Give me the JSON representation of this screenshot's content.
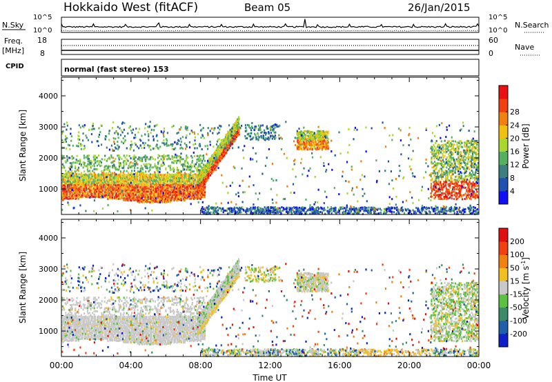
{
  "header": {
    "station": "Hokkaido West (fitACF)",
    "beam": "Beam 05",
    "date": "26/Jan/2015"
  },
  "status_panels": {
    "nsky_label": "N.Sky",
    "nsky_ticks": [
      "10^5",
      "10^0"
    ],
    "nsearch_label": "N.Search",
    "freq_label_top": "Freq.",
    "freq_label_unit": "[MHz]",
    "freq_ticks": [
      "18",
      "8"
    ],
    "nave_label": "Nave",
    "nave_ticks": [
      "60",
      "0"
    ],
    "cpid_label": "CPID",
    "cpid_text": "normal (fast stereo) 153"
  },
  "chart_data": [
    {
      "type": "heatmap",
      "name": "power",
      "xlabel": "",
      "ylabel": "Slant Range [km]",
      "xlim": [
        0,
        24
      ],
      "ylim": [
        180,
        4600
      ],
      "y_ticks": [
        "1000",
        "2000",
        "3000",
        "4000"
      ],
      "colorbar": {
        "label": "Power [dB]",
        "ticks": [
          "4",
          "8",
          "12",
          "16",
          "20",
          "24",
          "28"
        ],
        "colors": [
          "#1010f0",
          "#2050b0",
          "#3d7e7e",
          "#55b060",
          "#a8d830",
          "#f0c010",
          "#f08010",
          "#f04010",
          "#e81010"
        ]
      }
    },
    {
      "type": "heatmap",
      "name": "velocity",
      "xlabel": "Time UT",
      "ylabel": "Slant Range [km]",
      "xlim": [
        0,
        24
      ],
      "ylim": [
        180,
        4600
      ],
      "x_ticks": [
        "00:00",
        "04:00",
        "08:00",
        "12:00",
        "16:00",
        "20:00",
        "00:00"
      ],
      "y_ticks": [
        "1000",
        "2000",
        "3000",
        "4000"
      ],
      "colorbar": {
        "label_main": "Velocity [m s",
        "label_sup": "-1",
        "label_end": "]",
        "ticks": [
          "200",
          "100",
          "50",
          "15",
          "-15",
          "-50",
          "-100",
          "-200"
        ],
        "colors": [
          "#1020c8",
          "#2060a8",
          "#3d8a6a",
          "#5cc040",
          "#c8c8c8",
          "#f0c020",
          "#f08010",
          "#f04010",
          "#e01010"
        ]
      }
    }
  ]
}
